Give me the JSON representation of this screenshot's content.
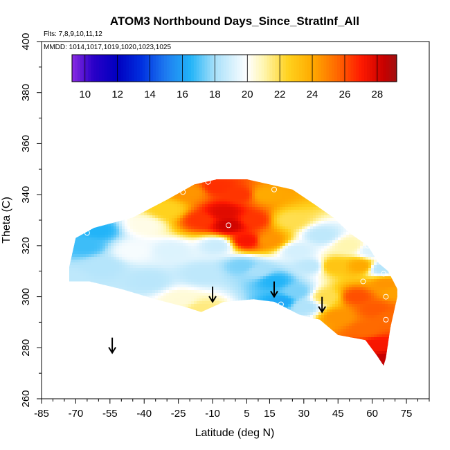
{
  "chart_data": {
    "type": "heatmap",
    "title": "ATOM3 Northbound Days_Since_StratInf_All",
    "xlabel": "Latitude (deg N)",
    "ylabel": "Theta (C)",
    "xlim": [
      -85,
      85
    ],
    "ylim": [
      260,
      400
    ],
    "xticks": [
      -85,
      -70,
      -55,
      -40,
      -25,
      -10,
      5,
      15,
      30,
      45,
      60,
      75
    ],
    "yticks": [
      260,
      280,
      300,
      320,
      340,
      360,
      380,
      400
    ],
    "flights_note": "Flts: 7,8,9,10,11,12",
    "dates_note": "MMDD: 1014,1017,1019,1020,1023,1025",
    "colorbar": {
      "min": 9.2,
      "max": 29.2,
      "ticks": [
        10,
        12,
        14,
        16,
        18,
        20,
        22,
        24,
        26,
        28
      ],
      "stops": [
        {
          "v": 9.2,
          "c": "#8a2be2"
        },
        {
          "v": 10.5,
          "c": "#2a00c8"
        },
        {
          "v": 12,
          "c": "#0000c0"
        },
        {
          "v": 13.5,
          "c": "#0030e0"
        },
        {
          "v": 15,
          "c": "#1e7cf0"
        },
        {
          "v": 16.5,
          "c": "#22b4f8"
        },
        {
          "v": 18,
          "c": "#a8e0fa"
        },
        {
          "v": 20,
          "c": "#ffffff"
        },
        {
          "v": 21,
          "c": "#fff6b0"
        },
        {
          "v": 22.5,
          "c": "#ffd21e"
        },
        {
          "v": 24,
          "c": "#ffaa00"
        },
        {
          "v": 25.5,
          "c": "#ff6a00"
        },
        {
          "v": 27,
          "c": "#ff1a00"
        },
        {
          "v": 28.4,
          "c": "#c80000"
        },
        {
          "v": 29.2,
          "c": "#a01010"
        }
      ]
    },
    "field_region": {
      "theta_top": [
        {
          "lat": -74,
          "theta": 307
        },
        {
          "lat": -70,
          "theta": 323
        },
        {
          "lat": -62,
          "theta": 327
        },
        {
          "lat": -45,
          "theta": 331
        },
        {
          "lat": -30,
          "theta": 338
        },
        {
          "lat": -18,
          "theta": 344
        },
        {
          "lat": -8,
          "theta": 346
        },
        {
          "lat": 5,
          "theta": 346
        },
        {
          "lat": 15,
          "theta": 344
        },
        {
          "lat": 25,
          "theta": 342
        },
        {
          "lat": 35,
          "theta": 336
        },
        {
          "lat": 43,
          "theta": 331
        },
        {
          "lat": 50,
          "theta": 325
        },
        {
          "lat": 58,
          "theta": 320
        },
        {
          "lat": 63,
          "theta": 313
        },
        {
          "lat": 67,
          "theta": 310
        },
        {
          "lat": 71,
          "theta": 303
        }
      ],
      "theta_bottom": [
        {
          "lat": 71,
          "theta": 300
        },
        {
          "lat": 68,
          "theta": 288
        },
        {
          "lat": 66,
          "theta": 276
        },
        {
          "lat": 65,
          "theta": 273
        },
        {
          "lat": 62,
          "theta": 277
        },
        {
          "lat": 57,
          "theta": 283
        },
        {
          "lat": 45,
          "theta": 285
        },
        {
          "lat": 37,
          "theta": 291
        },
        {
          "lat": 28,
          "theta": 293
        },
        {
          "lat": 17,
          "theta": 298
        },
        {
          "lat": 8,
          "theta": 299
        },
        {
          "lat": -5,
          "theta": 298
        },
        {
          "lat": -15,
          "theta": 294
        },
        {
          "lat": -22,
          "theta": 296
        },
        {
          "lat": -35,
          "theta": 299
        },
        {
          "lat": -50,
          "theta": 303
        },
        {
          "lat": -64,
          "theta": 306
        },
        {
          "lat": -74,
          "theta": 306
        }
      ]
    },
    "field_anchors": [
      {
        "lat": -73,
        "theta": 307,
        "value": 18.5
      },
      {
        "lat": -66,
        "theta": 320,
        "value": 16.8
      },
      {
        "lat": -60,
        "theta": 326,
        "value": 16.5
      },
      {
        "lat": -58,
        "theta": 312,
        "value": 18.3
      },
      {
        "lat": -45,
        "theta": 318,
        "value": 19.8
      },
      {
        "lat": -40,
        "theta": 328,
        "value": 20.3
      },
      {
        "lat": -38,
        "theta": 306,
        "value": 18.4
      },
      {
        "lat": -30,
        "theta": 334,
        "value": 22.5
      },
      {
        "lat": -28,
        "theta": 318,
        "value": 19.2
      },
      {
        "lat": -24,
        "theta": 299,
        "value": 20.5
      },
      {
        "lat": -20,
        "theta": 341,
        "value": 24.5
      },
      {
        "lat": -15,
        "theta": 330,
        "value": 26.5
      },
      {
        "lat": -15,
        "theta": 309,
        "value": 18.5
      },
      {
        "lat": -15,
        "theta": 295,
        "value": 21.5
      },
      {
        "lat": -8,
        "theta": 343,
        "value": 26.6
      },
      {
        "lat": -8,
        "theta": 320,
        "value": 18.8
      },
      {
        "lat": -5,
        "theta": 333,
        "value": 27.8
      },
      {
        "lat": -3,
        "theta": 328,
        "value": 28.2
      },
      {
        "lat": 2,
        "theta": 340,
        "value": 26.5
      },
      {
        "lat": 3,
        "theta": 312,
        "value": 17.5
      },
      {
        "lat": 5,
        "theta": 322,
        "value": 27.2
      },
      {
        "lat": 8,
        "theta": 330,
        "value": 26.5
      },
      {
        "lat": 10,
        "theta": 310,
        "value": 18.0
      },
      {
        "lat": 13,
        "theta": 340,
        "value": 24.0
      },
      {
        "lat": 15,
        "theta": 322,
        "value": 24.5
      },
      {
        "lat": 17,
        "theta": 306,
        "value": 16.5
      },
      {
        "lat": 20,
        "theta": 298,
        "value": 16.2
      },
      {
        "lat": 24,
        "theta": 330,
        "value": 22.0
      },
      {
        "lat": 27,
        "theta": 318,
        "value": 19.0
      },
      {
        "lat": 27,
        "theta": 302,
        "value": 17.5
      },
      {
        "lat": 30,
        "theta": 296,
        "value": 18.2
      },
      {
        "lat": 33,
        "theta": 312,
        "value": 18.5
      },
      {
        "lat": 38,
        "theta": 324,
        "value": 18.5
      },
      {
        "lat": 40,
        "theta": 300,
        "value": 22.0
      },
      {
        "lat": 43,
        "theta": 312,
        "value": 23.0
      },
      {
        "lat": 45,
        "theta": 292,
        "value": 24.5
      },
      {
        "lat": 50,
        "theta": 320,
        "value": 21.0
      },
      {
        "lat": 53,
        "theta": 300,
        "value": 26.0
      },
      {
        "lat": 55,
        "theta": 312,
        "value": 24.0
      },
      {
        "lat": 57,
        "theta": 287,
        "value": 25.5
      },
      {
        "lat": 60,
        "theta": 318,
        "value": 19.2
      },
      {
        "lat": 61,
        "theta": 295,
        "value": 25.8
      },
      {
        "lat": 62,
        "theta": 281,
        "value": 27.2
      },
      {
        "lat": 64,
        "theta": 311,
        "value": 18.3
      },
      {
        "lat": 65,
        "theta": 275,
        "value": 28.5
      },
      {
        "lat": 66,
        "theta": 305,
        "value": 24.5
      },
      {
        "lat": 67,
        "theta": 292,
        "value": 25.5
      },
      {
        "lat": 70,
        "theta": 302,
        "value": 24.2
      }
    ],
    "sample_points": [
      {
        "lat": -65,
        "theta": 325
      },
      {
        "lat": -23,
        "theta": 341
      },
      {
        "lat": -12,
        "theta": 345
      },
      {
        "lat": -3,
        "theta": 328
      },
      {
        "lat": 17,
        "theta": 342
      },
      {
        "lat": 20,
        "theta": 297
      },
      {
        "lat": 56,
        "theta": 306
      },
      {
        "lat": 58,
        "theta": 320
      },
      {
        "lat": 65,
        "theta": 309
      },
      {
        "lat": 66,
        "theta": 300
      },
      {
        "lat": 66,
        "theta": 291
      }
    ],
    "tropopause_arrows": [
      {
        "lat": -54,
        "theta": 278
      },
      {
        "lat": -10,
        "theta": 298
      },
      {
        "lat": 17,
        "theta": 300
      },
      {
        "lat": 38,
        "theta": 294
      }
    ]
  }
}
